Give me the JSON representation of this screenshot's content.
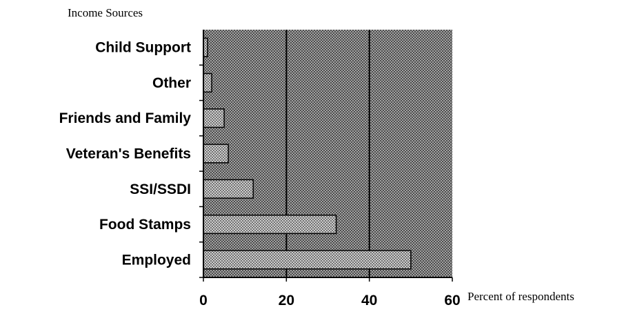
{
  "chart_data": {
    "type": "bar",
    "orientation": "horizontal",
    "title": "",
    "ylabel": "Income Sources",
    "xlabel": "Percent of respondents",
    "categories": [
      "Child Support",
      "Other",
      "Friends and Family",
      "Veteran's Benefits",
      "SSI/SSDI",
      "Food Stamps",
      "Employed"
    ],
    "values": [
      1,
      2,
      5,
      6,
      12,
      32,
      50
    ],
    "xlim": [
      0,
      60
    ],
    "xticks": [
      "0",
      "20",
      "40",
      "60"
    ],
    "grid": "vertical lines at 20 and 40",
    "legend": "none"
  },
  "colors": {
    "plot_background": "#8f8f8f",
    "bar_fill": "#c4c4c4",
    "gridline": "#000000",
    "text": "#000000"
  }
}
